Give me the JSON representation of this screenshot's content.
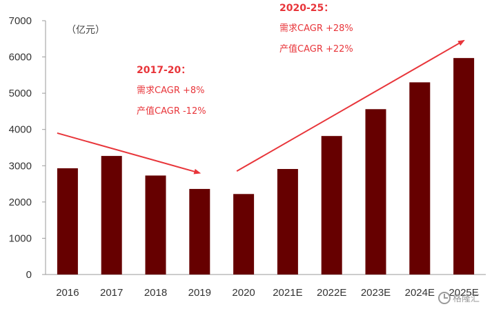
{
  "chart_data": {
    "type": "bar",
    "categories": [
      "2016",
      "2017",
      "2018",
      "2019",
      "2020",
      "2021E",
      "2022E",
      "2023E",
      "2024E",
      "2025E"
    ],
    "values": [
      2930,
      3270,
      2730,
      2360,
      2220,
      2910,
      3820,
      4560,
      5300,
      5970
    ],
    "ylabel": "（亿元）",
    "ylim": [
      0,
      7000
    ],
    "yticks": [
      0,
      1000,
      2000,
      3000,
      4000,
      5000,
      6000,
      7000
    ],
    "bar_color": "#660000",
    "grid": false,
    "annotations": [
      {
        "heading": "2017-20：",
        "lines": [
          "需求CAGR +8%",
          "产值CAGR -12%"
        ],
        "arrow": {
          "from": [
            "2016",
            3900
          ],
          "to": [
            "2019",
            2800
          ]
        }
      },
      {
        "heading": "2020-25：",
        "lines": [
          "需求CAGR +28%",
          "产值CAGR +22%"
        ],
        "arrow": {
          "from": [
            "2020",
            2850
          ],
          "to": [
            "2025E",
            6450
          ]
        }
      }
    ],
    "annotation_color": "#e8353a"
  },
  "watermark": {
    "text": "格隆汇",
    "icon": "gelonghui-logo-icon"
  }
}
